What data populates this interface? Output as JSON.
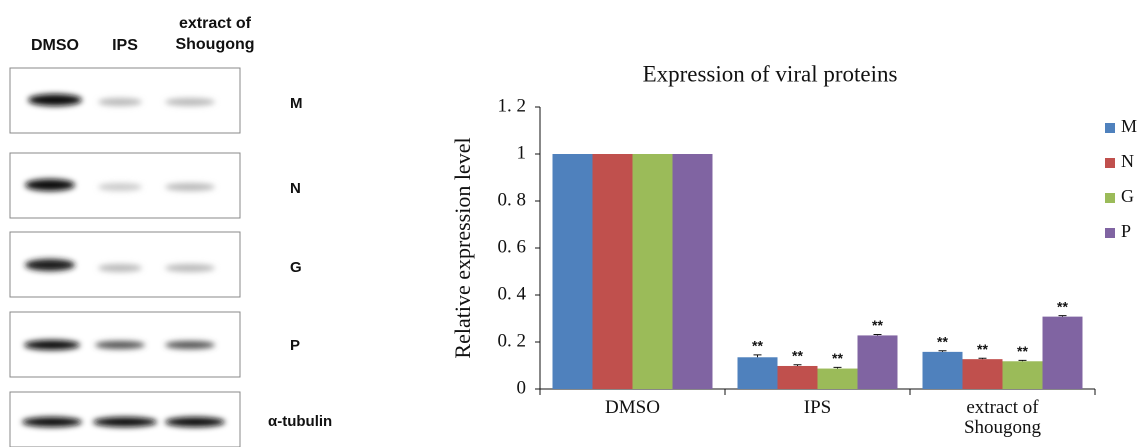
{
  "blot": {
    "lanes": [
      "DMSO",
      "IPS",
      "extract of Shougong"
    ],
    "rows": [
      "M",
      "N",
      "G",
      "P",
      "α-tubulin"
    ]
  },
  "chart_data": {
    "type": "bar",
    "title": "Expression of viral proteins",
    "y_label": "Relative expression level",
    "categories": [
      "DMSO",
      "IPS",
      "extract of Shougong"
    ],
    "series": [
      {
        "name": "M",
        "color": "#4f81bd",
        "values": [
          1,
          0.135,
          0.158
        ],
        "errors": [
          null,
          0.01,
          0.005
        ],
        "significance": [
          null,
          "**",
          "**"
        ]
      },
      {
        "name": "N",
        "color": "#c0504d",
        "values": [
          1,
          0.098,
          0.127
        ],
        "errors": [
          null,
          0.005,
          0.004
        ],
        "significance": [
          null,
          "**",
          "**"
        ]
      },
      {
        "name": "G",
        "color": "#9bbb59",
        "values": [
          1,
          0.087,
          0.118
        ],
        "errors": [
          null,
          0.005,
          0.004
        ],
        "significance": [
          null,
          "**",
          "**"
        ]
      },
      {
        "name": "P",
        "color": "#8064a2",
        "values": [
          1,
          0.228,
          0.308
        ],
        "errors": [
          null,
          0.004,
          0.004
        ],
        "significance": [
          null,
          "**",
          "**"
        ]
      }
    ],
    "ylim": [
      0,
      1.2
    ],
    "yticks": [
      0,
      {
        "value": 0.2,
        "label": "0. 2"
      },
      {
        "value": 0.4,
        "label": "0. 4"
      },
      {
        "value": 0.6,
        "label": "0. 6"
      },
      {
        "value": 0.8,
        "label": "0. 8"
      },
      1,
      {
        "value": 1.2,
        "label": "1. 2"
      }
    ],
    "legend": "right",
    "grid": false
  }
}
